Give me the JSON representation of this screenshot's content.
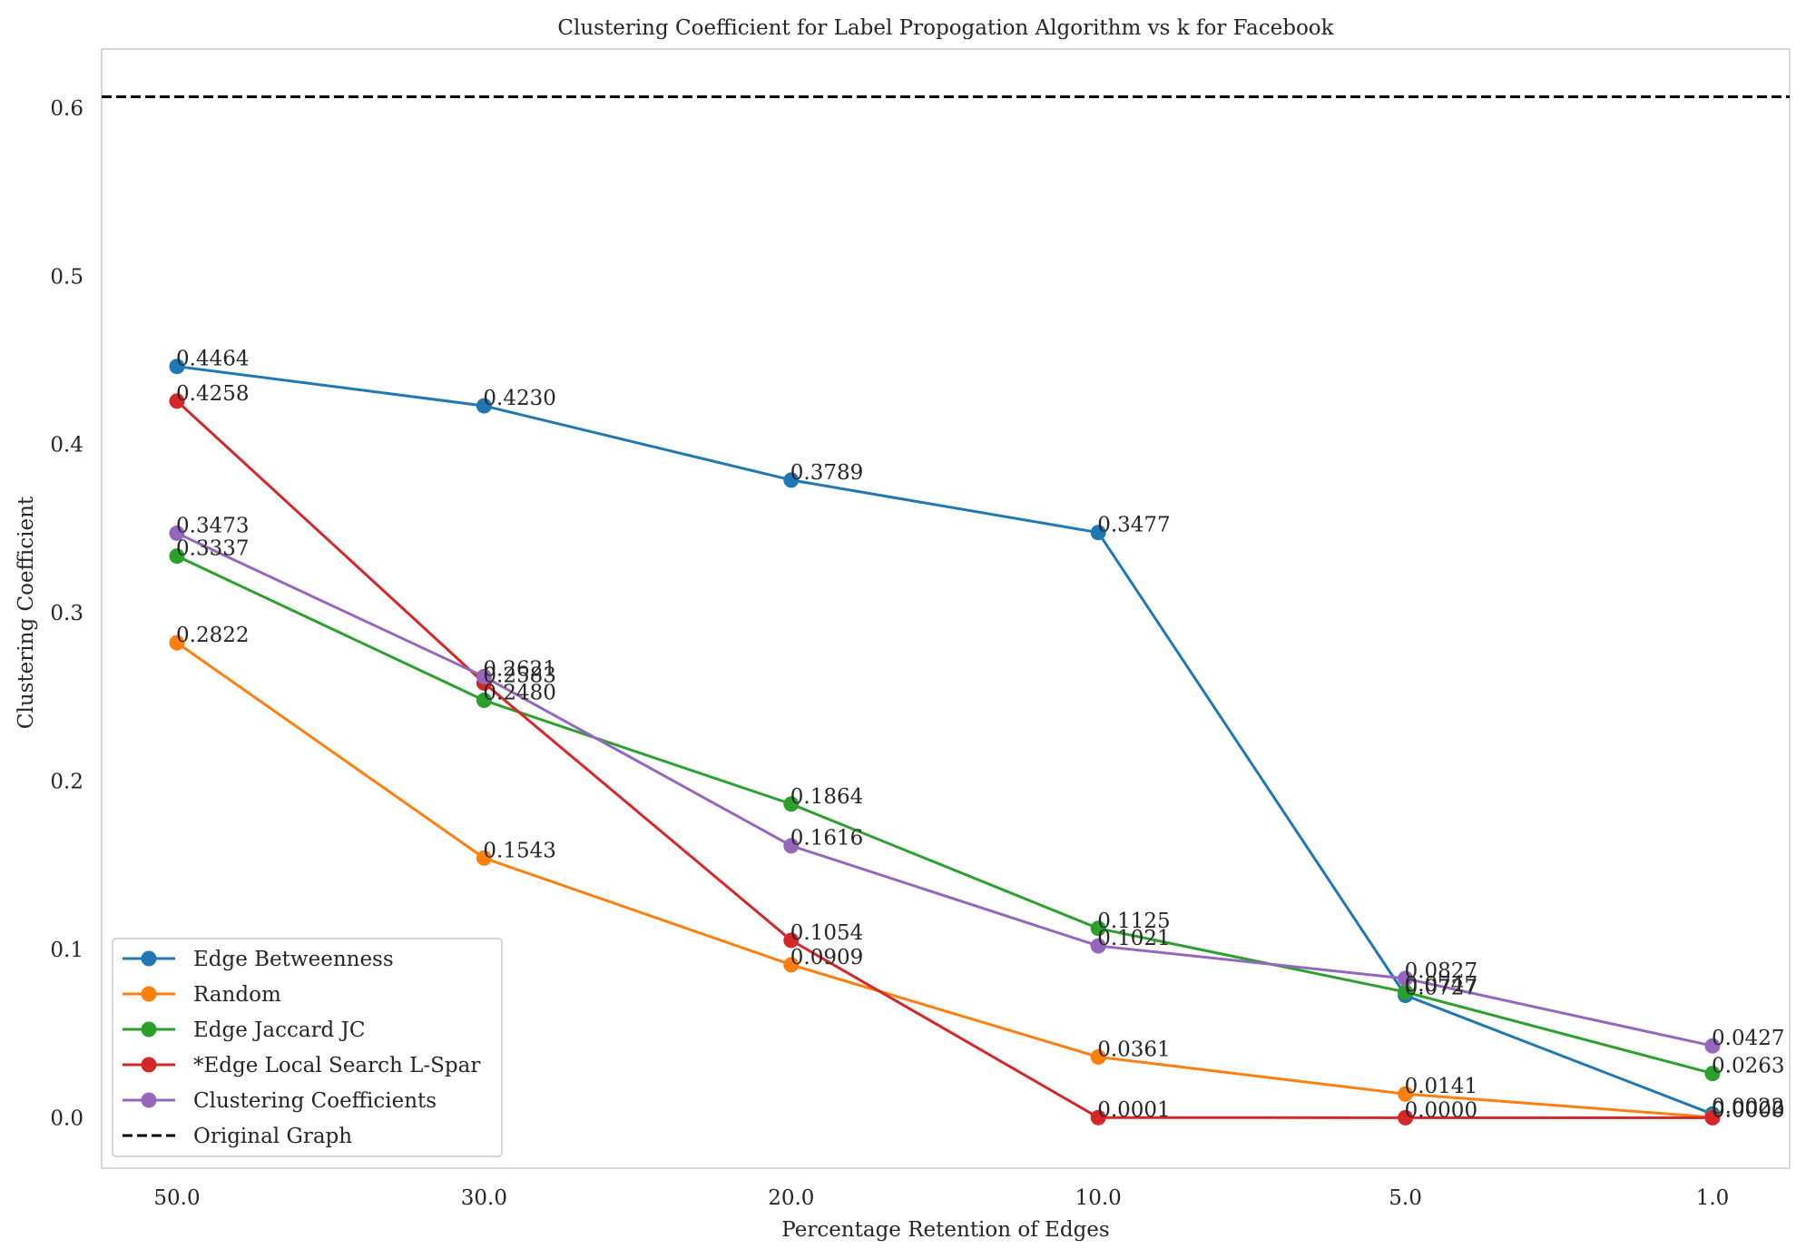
{
  "chart_data": {
    "type": "line",
    "title": "Clustering Coefficient for Label Propogation Algorithm vs k for Facebook",
    "xlabel": "Percentage Retention of Edges",
    "ylabel": "Clustering Coefficient",
    "categories": [
      "50.0",
      "30.0",
      "20.0",
      "10.0",
      "5.0",
      "1.0"
    ],
    "ylim": [
      -0.03,
      0.635
    ],
    "yticks": [
      "0.0",
      "0.1",
      "0.2",
      "0.3",
      "0.4",
      "0.5",
      "0.6"
    ],
    "grid": false,
    "legend_position": "bottom-left",
    "series": [
      {
        "name": "Edge Betweenness",
        "color": "#1f77b4",
        "values": [
          0.4464,
          0.423,
          0.3789,
          0.3477,
          0.0727,
          0.0022
        ],
        "labels": [
          "0.4464",
          "0.4230",
          "0.3789",
          "0.3477",
          "0.0727",
          "0.0022"
        ]
      },
      {
        "name": "Random",
        "color": "#ff7f0e",
        "values": [
          0.2822,
          0.1543,
          0.0909,
          0.0361,
          0.0141,
          0.0003
        ],
        "labels": [
          "0.2822",
          "0.1543",
          "0.0909",
          "0.0361",
          "0.0141",
          "0.0003"
        ]
      },
      {
        "name": "Edge Jaccard JC",
        "color": "#2ca02c",
        "values": [
          0.3337,
          0.248,
          0.1864,
          0.1125,
          0.0747,
          0.0263
        ],
        "labels": [
          "0.3337",
          "0.2480",
          "0.1864",
          "0.1125",
          "0.0747",
          "0.0263"
        ]
      },
      {
        "name": "*Edge Local Search L-Spar",
        "color": "#d62728",
        "values": [
          0.4258,
          0.2583,
          0.1054,
          0.0001,
          0.0,
          0.0
        ],
        "labels": [
          "0.4258",
          "0.2583",
          "0.1054",
          "0.0001",
          "0.0000",
          "0.0000"
        ]
      },
      {
        "name": "Clustering Coefficients",
        "color": "#9467bd",
        "values": [
          0.3473,
          0.2621,
          0.1616,
          0.1021,
          0.0827,
          0.0427
        ],
        "labels": [
          "0.3473",
          "0.2621",
          "0.1616",
          "0.1021",
          "0.0827",
          "0.0427"
        ]
      }
    ],
    "reference_line": {
      "name": "Original Graph",
      "value": 0.6066,
      "color": "#000000",
      "style": "dashed"
    }
  }
}
